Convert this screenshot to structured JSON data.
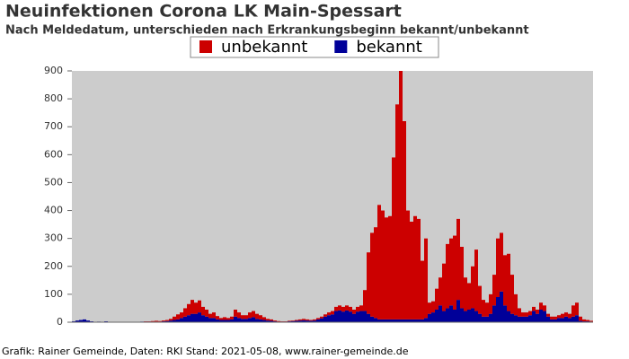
{
  "chart_data": {
    "type": "stacked_bar",
    "title": "Neuinfektionen Corona LK Main-Spessart",
    "subtitle": "Nach Meldedatum, unterschieden nach Erkrankungsbeginn bekannt/unbekannt",
    "footer": "Grafik: Rainer Gemeinde, Daten: RKI Stand: 2021-05-08, www.rainer-gemeinde.de",
    "categories": [
      null,
      null,
      null,
      null,
      null,
      null,
      null,
      null,
      null,
      null,
      null,
      null,
      null,
      null,
      null,
      null,
      null,
      null,
      null,
      null,
      null,
      null,
      null,
      null,
      null,
      null,
      null,
      null,
      null,
      null,
      null,
      null,
      null,
      null,
      null,
      null,
      null,
      null,
      null,
      null,
      null,
      null,
      null,
      null,
      null,
      null,
      null,
      null,
      null,
      null,
      null,
      null,
      null,
      null,
      null,
      null,
      null,
      null,
      null,
      null,
      null,
      null,
      null,
      null,
      null,
      null,
      null,
      null,
      null,
      null,
      null,
      null,
      null,
      null,
      null,
      null,
      null,
      null,
      null,
      null,
      null,
      null,
      null,
      null,
      null,
      null,
      null,
      null,
      null,
      null,
      null,
      null,
      null,
      null,
      null,
      null,
      null,
      null,
      null,
      null,
      null,
      null,
      null,
      null,
      null,
      null,
      null,
      null,
      null,
      null,
      null,
      null,
      null,
      null,
      null,
      null,
      null,
      null,
      null,
      null,
      null,
      null,
      null,
      null,
      null,
      null,
      null,
      null,
      null,
      null,
      null,
      null,
      null,
      null,
      null,
      null,
      null,
      null,
      null,
      null,
      null,
      null,
      null,
      null,
      null
    ],
    "series": [
      {
        "name": "unbekannt",
        "color": "#cc0000",
        "values": [
          0,
          0,
          0,
          0,
          0,
          0,
          0,
          0,
          0,
          0,
          0,
          0,
          0,
          0,
          0,
          0,
          0,
          0,
          0,
          0,
          1,
          1,
          2,
          3,
          2,
          3,
          4,
          6,
          12,
          18,
          20,
          30,
          40,
          50,
          40,
          43,
          30,
          25,
          15,
          20,
          12,
          7,
          10,
          7,
          10,
          25,
          20,
          13,
          13,
          20,
          22,
          18,
          15,
          10,
          6,
          5,
          3,
          2,
          1,
          1,
          2,
          2,
          3,
          4,
          5,
          4,
          3,
          4,
          5,
          6,
          8,
          10,
          12,
          15,
          18,
          17,
          18,
          17,
          15,
          17,
          20,
          75,
          220,
          300,
          325,
          410,
          390,
          365,
          370,
          580,
          770,
          890,
          710,
          390,
          350,
          370,
          360,
          210,
          285,
          40,
          40,
          75,
          100,
          170,
          230,
          240,
          265,
          290,
          220,
          120,
          95,
          150,
          220,
          100,
          60,
          50,
          70,
          110,
          210,
          210,
          180,
          205,
          140,
          75,
          30,
          15,
          15,
          15,
          15,
          15,
          25,
          20,
          10,
          10,
          10,
          10,
          15,
          15,
          15,
          40,
          45,
          15,
          7,
          5,
          3
        ]
      },
      {
        "name": "bekannt",
        "color": "#000099",
        "values": [
          3,
          6,
          8,
          10,
          6,
          3,
          0,
          2,
          1,
          3,
          0,
          0,
          0,
          0,
          0,
          0,
          0,
          0,
          0,
          2,
          2,
          2,
          2,
          2,
          2,
          3,
          4,
          6,
          8,
          10,
          15,
          20,
          25,
          30,
          30,
          35,
          25,
          20,
          15,
          15,
          10,
          8,
          8,
          8,
          10,
          20,
          15,
          12,
          12,
          15,
          18,
          12,
          10,
          8,
          6,
          5,
          3,
          2,
          2,
          2,
          3,
          4,
          5,
          6,
          7,
          6,
          5,
          6,
          10,
          14,
          20,
          25,
          28,
          40,
          42,
          38,
          42,
          38,
          30,
          38,
          40,
          40,
          30,
          20,
          15,
          10,
          10,
          10,
          10,
          10,
          10,
          10,
          10,
          10,
          10,
          10,
          10,
          10,
          15,
          30,
          35,
          45,
          60,
          40,
          50,
          60,
          45,
          80,
          50,
          40,
          45,
          50,
          40,
          30,
          20,
          20,
          30,
          60,
          90,
          110,
          60,
          40,
          30,
          25,
          20,
          20,
          20,
          25,
          40,
          30,
          45,
          40,
          20,
          10,
          10,
          15,
          15,
          20,
          15,
          20,
          25,
          5,
          3,
          3,
          2
        ]
      }
    ],
    "ylim": [
      0,
      900
    ],
    "yticks": [
      0,
      100,
      200,
      300,
      400,
      500,
      600,
      700,
      800,
      900
    ],
    "grid": false,
    "background": "#cccccc"
  }
}
